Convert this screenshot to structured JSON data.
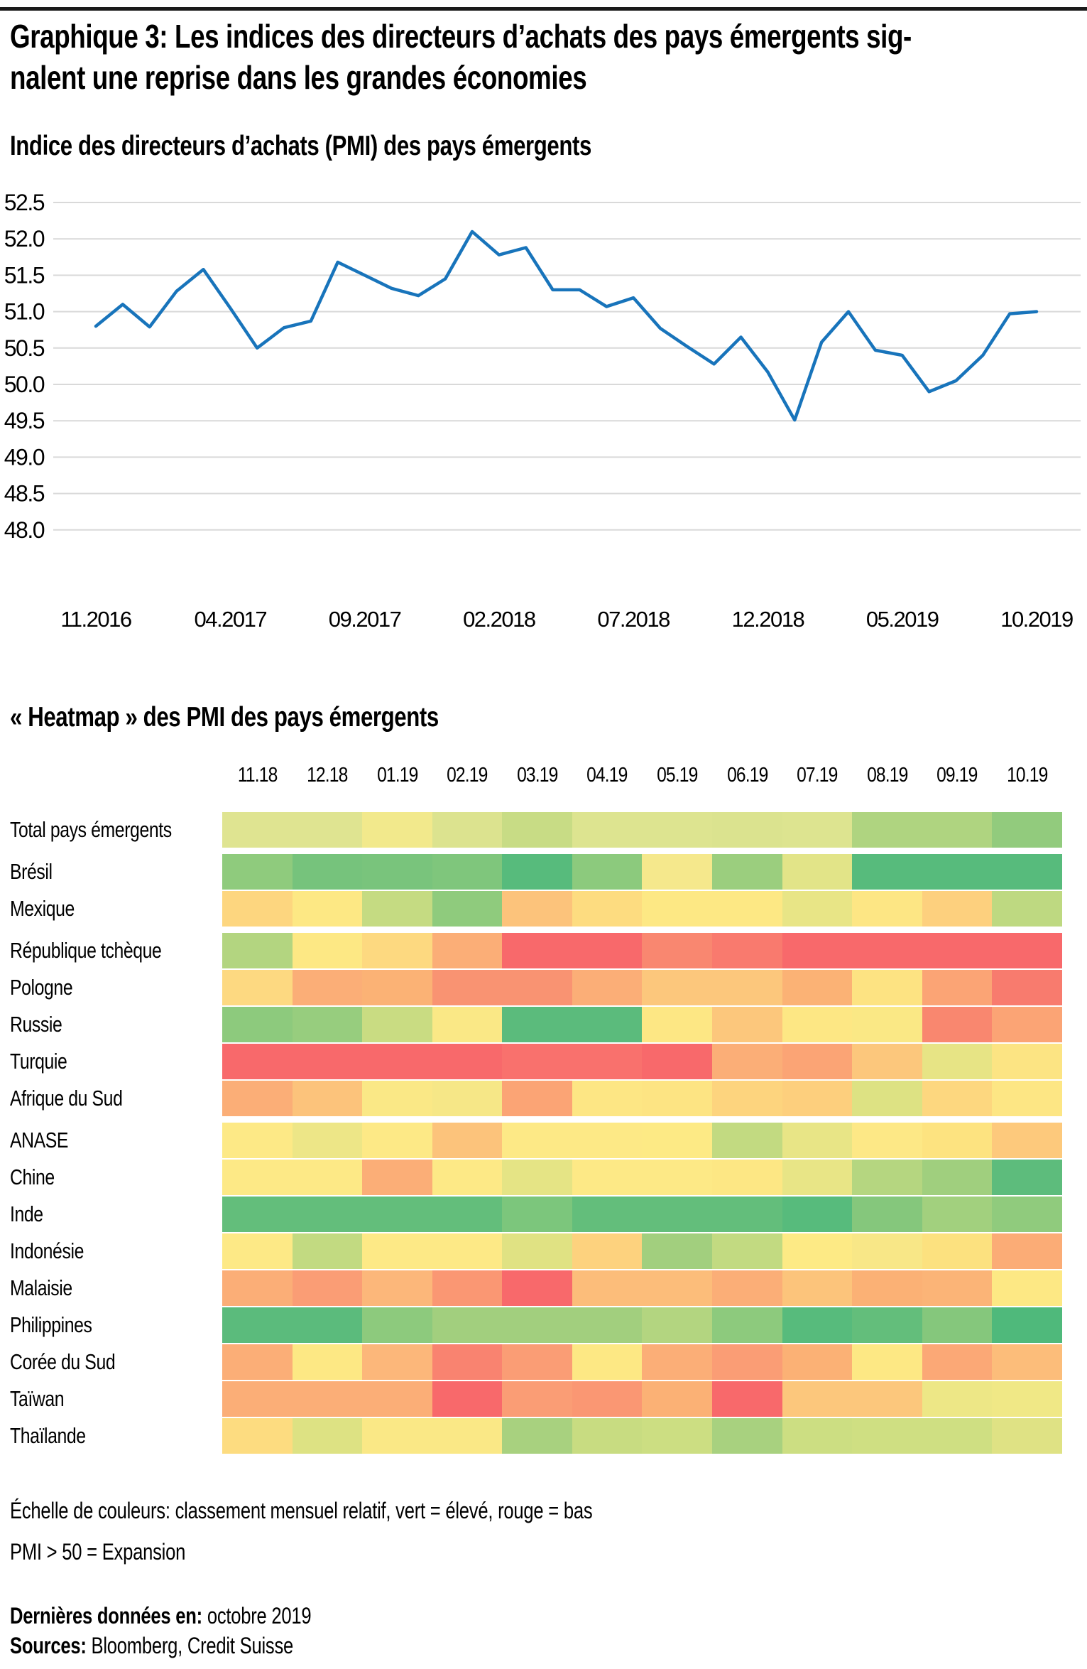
{
  "header": {
    "title_lines": [
      "Graphique 3: Les indices des directeurs d’achats des pays émergents sig-",
      "nalent une reprise dans les grandes économies"
    ]
  },
  "line_section": {
    "title": "Indice des directeurs d’achats (PMI) des pays émergents"
  },
  "heatmap_section": {
    "title": "« Heatmap » des PMI des pays émergents"
  },
  "notes": {
    "color_scale": "Échelle de couleurs: classement mensuel relatif, vert = élevé, rouge = bas",
    "expansion": "PMI > 50 = Expansion"
  },
  "footer": {
    "last_data_label": "Dernières données en:",
    "last_data_value": " octobre 2019",
    "sources_label": "Sources:",
    "sources_value": " Bloomberg, Credit Suisse"
  },
  "chart_data": [
    {
      "type": "line",
      "title": "Indice des directeurs d’achats (PMI) des pays émergents",
      "x_start": "11.2016",
      "x_end": "10.2019",
      "x_ticks": [
        "11.2016",
        "04.2017",
        "09.2017",
        "02.2018",
        "07.2018",
        "12.2018",
        "05.2019",
        "10.2019"
      ],
      "x_tick_indices": [
        0,
        5,
        10,
        15,
        20,
        25,
        30,
        35
      ],
      "y_ticks": [
        "52.5",
        "52.0",
        "51.5",
        "51.0",
        "50.5",
        "50.0",
        "49.5",
        "49.0",
        "48.5",
        "48.0"
      ],
      "ylim": [
        48.0,
        52.5
      ],
      "grid": true,
      "line_color": "#1874BB",
      "grid_color": "#D9D9D9",
      "values": [
        50.8,
        51.1,
        50.79,
        51.28,
        51.58,
        51.05,
        50.5,
        50.78,
        50.87,
        51.68,
        51.5,
        51.32,
        51.22,
        51.45,
        52.1,
        51.78,
        51.88,
        51.3,
        51.3,
        51.07,
        51.19,
        50.77,
        50.52,
        50.28,
        50.65,
        50.17,
        49.51,
        50.58,
        51.0,
        50.47,
        50.4,
        49.9,
        50.05,
        50.4,
        50.97,
        51.0
      ]
    },
    {
      "type": "heatmap",
      "columns": [
        "11.18",
        "12.18",
        "01.19",
        "02.19",
        "03.19",
        "04.19",
        "05.19",
        "06.19",
        "07.19",
        "08.19",
        "09.19",
        "10.19"
      ],
      "legend": "classement mensuel relatif, vert = élevé, rouge = bas",
      "group_gaps_after": [
        0,
        2,
        7
      ],
      "rows": [
        {
          "label": "Total pays émergents",
          "cells": [
            "#DFE491",
            "#DFE491",
            "#F2E98C",
            "#DCE38F",
            "#C8DC85",
            "#DDE490",
            "#DDE490",
            "#DBE38F",
            "#DDE490",
            "#AFD480",
            "#AFD480",
            "#92CB7D"
          ]
        },
        {
          "label": "Brésil",
          "cells": [
            "#8FCB7D",
            "#76C37C",
            "#79C47C",
            "#7FC67C",
            "#57BB7C",
            "#8CCA7D",
            "#F5E88C",
            "#9BCE7E",
            "#E2E488",
            "#57BB7C",
            "#57BB7C",
            "#57BB7C"
          ]
        },
        {
          "label": "Mexique",
          "cells": [
            "#FDD67F",
            "#FDE884",
            "#C5DB82",
            "#8FCB7D",
            "#FCC37B",
            "#FDDC80",
            "#FDE884",
            "#FDE884",
            "#E8E586",
            "#FDE684",
            "#FDD07E",
            "#BED981"
          ]
        },
        {
          "label": "République tchèque",
          "cells": [
            "#B3D580",
            "#FDE884",
            "#FDD980",
            "#FBAE77",
            "#F8696B",
            "#F8696B",
            "#F98770",
            "#F97A6E",
            "#F8696B",
            "#F8696B",
            "#F8696B",
            "#F8696B"
          ]
        },
        {
          "label": "Pologne",
          "cells": [
            "#FDD981",
            "#FBAE77",
            "#FBB275",
            "#F99372",
            "#F99372",
            "#FBAE77",
            "#FCC77C",
            "#FCC77C",
            "#FBB275",
            "#FDE382",
            "#FBA475",
            "#F87B6E"
          ]
        },
        {
          "label": "Russie",
          "cells": [
            "#8DCA7D",
            "#97CD7E",
            "#C9DC82",
            "#FAE886",
            "#5BBB7C",
            "#5BBB7C",
            "#FDE784",
            "#FCC77C",
            "#FDE784",
            "#FAE885",
            "#F9876F",
            "#FBA475"
          ]
        },
        {
          "label": "Turquie",
          "cells": [
            "#F8696B",
            "#F8696B",
            "#F8696B",
            "#F8696B",
            "#F9716D",
            "#F9716D",
            "#F8696B",
            "#FBAE77",
            "#FBA475",
            "#FCC77C",
            "#E7E485",
            "#FCE483"
          ]
        },
        {
          "label": "Afrique du Sud",
          "cells": [
            "#FBAE77",
            "#FCC37B",
            "#FAE886",
            "#F6E787",
            "#FBA475",
            "#FDE684",
            "#FDE483",
            "#FDD47E",
            "#FDCF7D",
            "#DDE283",
            "#FDD77F",
            "#FDE684"
          ]
        },
        {
          "label": "ANASE",
          "cells": [
            "#FDE986",
            "#EDE687",
            "#FDE986",
            "#FCC37B",
            "#FDE986",
            "#FDE986",
            "#FDEA85",
            "#C2DA81",
            "#E8E586",
            "#FDE886",
            "#FDE380",
            "#FDC97C"
          ]
        },
        {
          "label": "Chine",
          "cells": [
            "#FDE986",
            "#FDE986",
            "#FBAE77",
            "#FDE986",
            "#E5E485",
            "#FDE986",
            "#FDE986",
            "#FDE784",
            "#E8E586",
            "#B5D680",
            "#A0CF7E",
            "#5DBC7C"
          ]
        },
        {
          "label": "Inde",
          "cells": [
            "#63BE7B",
            "#63BE7B",
            "#63BE7B",
            "#63BE7B",
            "#7CC67C",
            "#63BE7B",
            "#63BE7B",
            "#63BE7B",
            "#57BB7C",
            "#85C77C",
            "#A2D07E",
            "#90CB7D"
          ]
        },
        {
          "label": "Indonésie",
          "cells": [
            "#FDE986",
            "#C2DA81",
            "#FDE986",
            "#FDE986",
            "#E0E283",
            "#FDD27E",
            "#A2CF7E",
            "#C2DA81",
            "#FDEA85",
            "#F8E787",
            "#FCE17F",
            "#FBAC76"
          ]
        },
        {
          "label": "Malaisie",
          "cells": [
            "#FBAE77",
            "#FA9D75",
            "#FCB77A",
            "#FA9773",
            "#F8696B",
            "#FCBD7A",
            "#FCBD7A",
            "#FBAE77",
            "#FCC47B",
            "#FBB175",
            "#FBB477",
            "#FDE884"
          ]
        },
        {
          "label": "Philippines",
          "cells": [
            "#5BBB7C",
            "#5BBB7C",
            "#8DCA7D",
            "#A2CF7E",
            "#A2CF7E",
            "#A2CF7E",
            "#B3D580",
            "#8DCA7D",
            "#57BB7C",
            "#63BE7B",
            "#85C77C",
            "#4FB97B"
          ]
        },
        {
          "label": "Corée du Sud",
          "cells": [
            "#FBAE77",
            "#FDE884",
            "#FCB77A",
            "#F98370",
            "#FA9D75",
            "#FDE884",
            "#FBAE77",
            "#FA9D75",
            "#FBB175",
            "#FDE884",
            "#FBA876",
            "#FCBD7A"
          ]
        },
        {
          "label": "Taïwan",
          "cells": [
            "#FBAE77",
            "#FBAE77",
            "#FBAE77",
            "#F8696B",
            "#FA9D75",
            "#FA9773",
            "#FBB175",
            "#F8696B",
            "#FCC77C",
            "#FCC77C",
            "#EDE786",
            "#F0E886"
          ]
        },
        {
          "label": "Thaïlande",
          "cells": [
            "#FDDC80",
            "#DDE283",
            "#FAE886",
            "#FAE886",
            "#A8D17F",
            "#C8DC81",
            "#CCDE82",
            "#A8D17F",
            "#CCDE82",
            "#CFDF82",
            "#CFDF82",
            "#DFE284"
          ]
        }
      ]
    }
  ]
}
